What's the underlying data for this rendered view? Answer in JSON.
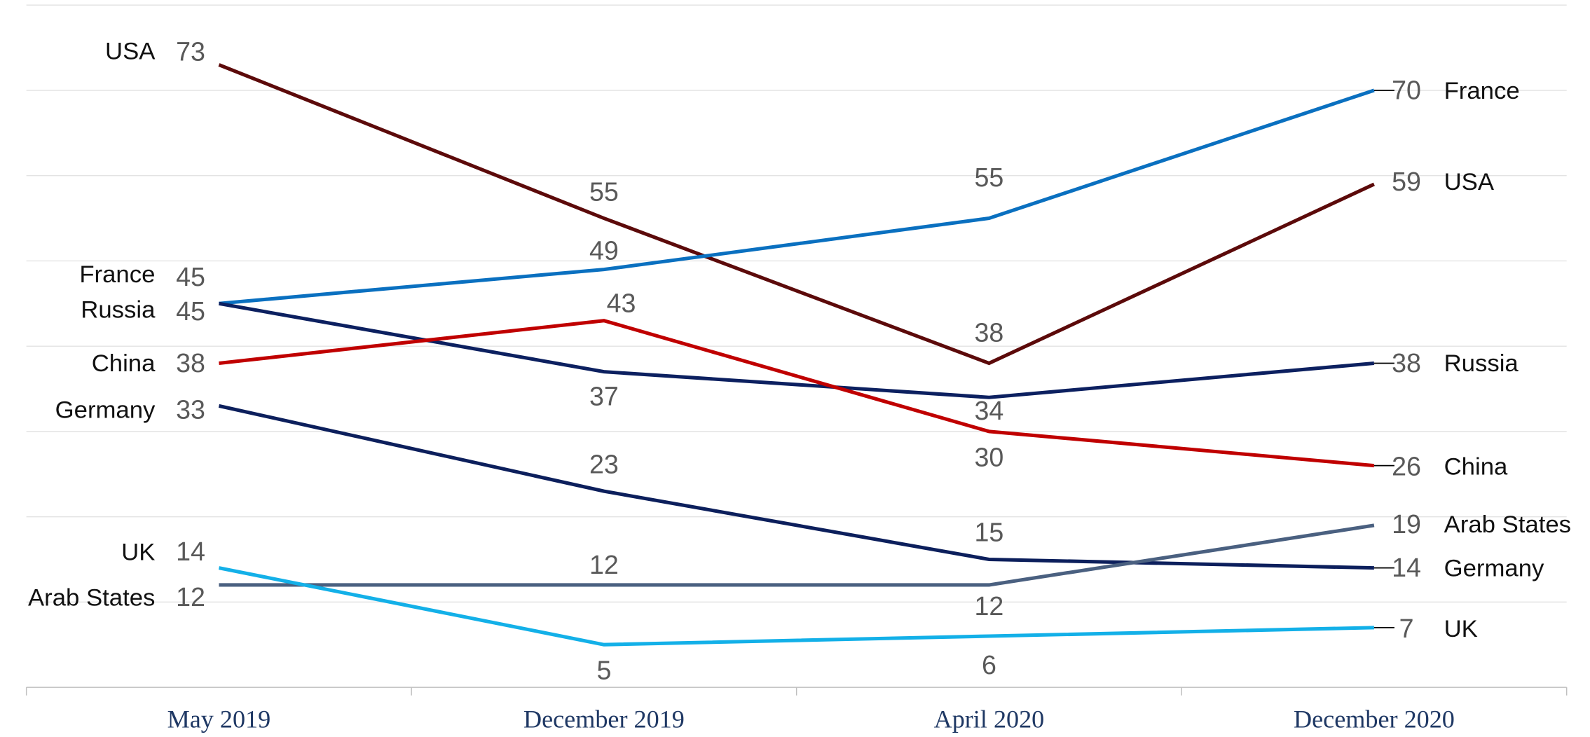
{
  "chart_data": {
    "type": "line",
    "categories": [
      "May 2019",
      "December 2019",
      "April 2020",
      "December 2020"
    ],
    "series": [
      {
        "name": "USA",
        "color": "#5c0a0a",
        "values": [
          73,
          55,
          38,
          59
        ]
      },
      {
        "name": "France",
        "color": "#0a70c0",
        "values": [
          45,
          49,
          55,
          70
        ]
      },
      {
        "name": "Russia",
        "color": "#0c2060",
        "values": [
          45,
          37,
          34,
          38
        ]
      },
      {
        "name": "China",
        "color": "#c00000",
        "values": [
          38,
          43,
          30,
          26
        ]
      },
      {
        "name": "Germany",
        "color": "#0c1f5c",
        "values": [
          33,
          23,
          15,
          14
        ]
      },
      {
        "name": "Arab States",
        "color": "#4a6080",
        "values": [
          12,
          12,
          12,
          19
        ]
      },
      {
        "name": "UK",
        "color": "#13b0e8",
        "values": [
          14,
          5,
          6,
          7
        ]
      }
    ],
    "ylim": [
      0,
      80
    ],
    "yticks": [
      0,
      10,
      20,
      30,
      40,
      50,
      60,
      70,
      80
    ],
    "grid": true
  }
}
